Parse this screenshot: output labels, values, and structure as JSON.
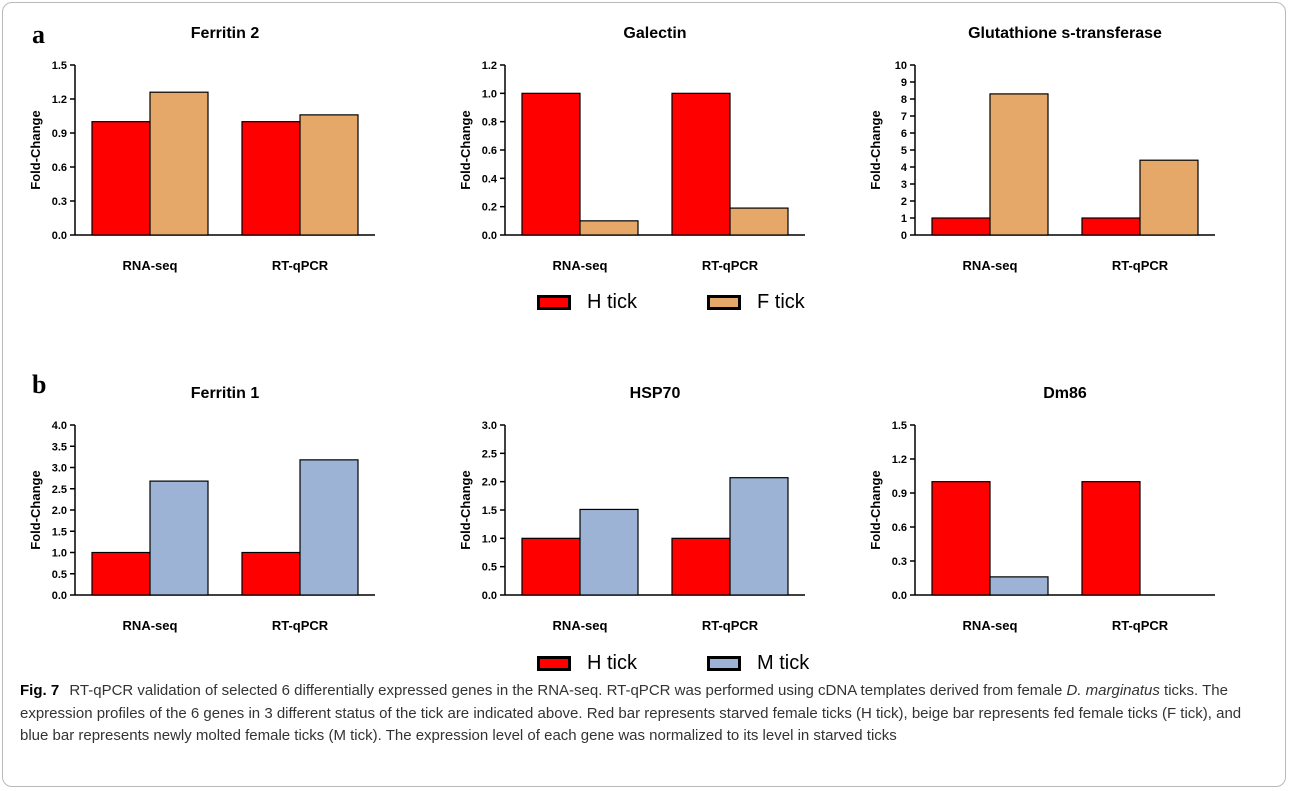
{
  "panels": {
    "a": {
      "label": "a",
      "legend": [
        {
          "label": "H tick",
          "color": "#ff0000"
        },
        {
          "label": "F tick",
          "color": "#e6a868"
        }
      ]
    },
    "b": {
      "label": "b",
      "legend": [
        {
          "label": "H tick",
          "color": "#ff0000"
        },
        {
          "label": "M tick",
          "color": "#9db3d5"
        }
      ]
    }
  },
  "chart_data": [
    {
      "type": "bar",
      "title": "Ferritin 2",
      "ylabel": "Fold-Change",
      "categories": [
        "RNA-seq",
        "RT-qPCR"
      ],
      "ylim": [
        0,
        1.5
      ],
      "yticks": [
        "0.0",
        "0.3",
        "0.6",
        "0.9",
        "1.2",
        "1.5"
      ],
      "series": [
        {
          "name": "H tick",
          "color": "#ff0000",
          "values": [
            1.0,
            1.0
          ]
        },
        {
          "name": "F tick",
          "color": "#e6a868",
          "values": [
            1.26,
            1.06
          ]
        }
      ]
    },
    {
      "type": "bar",
      "title": "Galectin",
      "ylabel": "Fold-Change",
      "categories": [
        "RNA-seq",
        "RT-qPCR"
      ],
      "ylim": [
        0,
        1.2
      ],
      "yticks": [
        "0.0",
        "0.2",
        "0.4",
        "0.6",
        "0.8",
        "1.0",
        "1.2"
      ],
      "series": [
        {
          "name": "H tick",
          "color": "#ff0000",
          "values": [
            1.0,
            1.0
          ]
        },
        {
          "name": "F tick",
          "color": "#e6a868",
          "values": [
            0.1,
            0.19
          ]
        }
      ]
    },
    {
      "type": "bar",
      "title": "Glutathione s-transferase",
      "ylabel": "Fold-Change",
      "categories": [
        "RNA-seq",
        "RT-qPCR"
      ],
      "ylim": [
        0,
        10
      ],
      "yticks": [
        "0",
        "1",
        "2",
        "3",
        "4",
        "5",
        "6",
        "7",
        "8",
        "9",
        "10"
      ],
      "series": [
        {
          "name": "H tick",
          "color": "#ff0000",
          "values": [
            1.0,
            1.0
          ]
        },
        {
          "name": "F tick",
          "color": "#e6a868",
          "values": [
            8.3,
            4.4
          ]
        }
      ]
    },
    {
      "type": "bar",
      "title": "Ferritin 1",
      "ylabel": "Fold-Change",
      "categories": [
        "RNA-seq",
        "RT-qPCR"
      ],
      "ylim": [
        0,
        4.0
      ],
      "yticks": [
        "0.0",
        "0.5",
        "1.0",
        "1.5",
        "2.0",
        "2.5",
        "3.0",
        "3.5",
        "4.0"
      ],
      "series": [
        {
          "name": "H tick",
          "color": "#ff0000",
          "values": [
            1.0,
            1.0
          ]
        },
        {
          "name": "M tick",
          "color": "#9db3d5",
          "values": [
            2.68,
            3.18
          ]
        }
      ]
    },
    {
      "type": "bar",
      "title": "HSP70",
      "ylabel": "Fold-Change",
      "categories": [
        "RNA-seq",
        "RT-qPCR"
      ],
      "ylim": [
        0,
        3.0
      ],
      "yticks": [
        "0.0",
        "0.5",
        "1.0",
        "1.5",
        "2.0",
        "2.5",
        "3.0"
      ],
      "series": [
        {
          "name": "H tick",
          "color": "#ff0000",
          "values": [
            1.0,
            1.0
          ]
        },
        {
          "name": "M tick",
          "color": "#9db3d5",
          "values": [
            1.51,
            2.07
          ]
        }
      ]
    },
    {
      "type": "bar",
      "title": "Dm86",
      "ylabel": "Fold-Change",
      "categories": [
        "RNA-seq",
        "RT-qPCR"
      ],
      "ylim": [
        0,
        1.5
      ],
      "yticks": [
        "0.0",
        "0.3",
        "0.6",
        "0.9",
        "1.2",
        "1.5"
      ],
      "series": [
        {
          "name": "H tick",
          "color": "#ff0000",
          "values": [
            1.0,
            1.0
          ]
        },
        {
          "name": "M tick",
          "color": "#9db3d5",
          "values": [
            0.16,
            0.0
          ]
        }
      ]
    }
  ],
  "caption": {
    "fig": "Fig. 7",
    "part1": "RT-qPCR validation of selected 6 differentially expressed genes in the RNA-seq. RT-qPCR was performed using cDNA templates derived from female ",
    "species": "D. marginatus",
    "part2": " ticks. The expression profiles of the 6 genes in 3 different status of the tick are indicated above. Red bar represents starved female ticks (H tick), beige bar represents fed female ticks (F tick), and blue bar represents newly molted female ticks (M tick). The expression level of each gene was normalized to its level in starved ticks"
  }
}
